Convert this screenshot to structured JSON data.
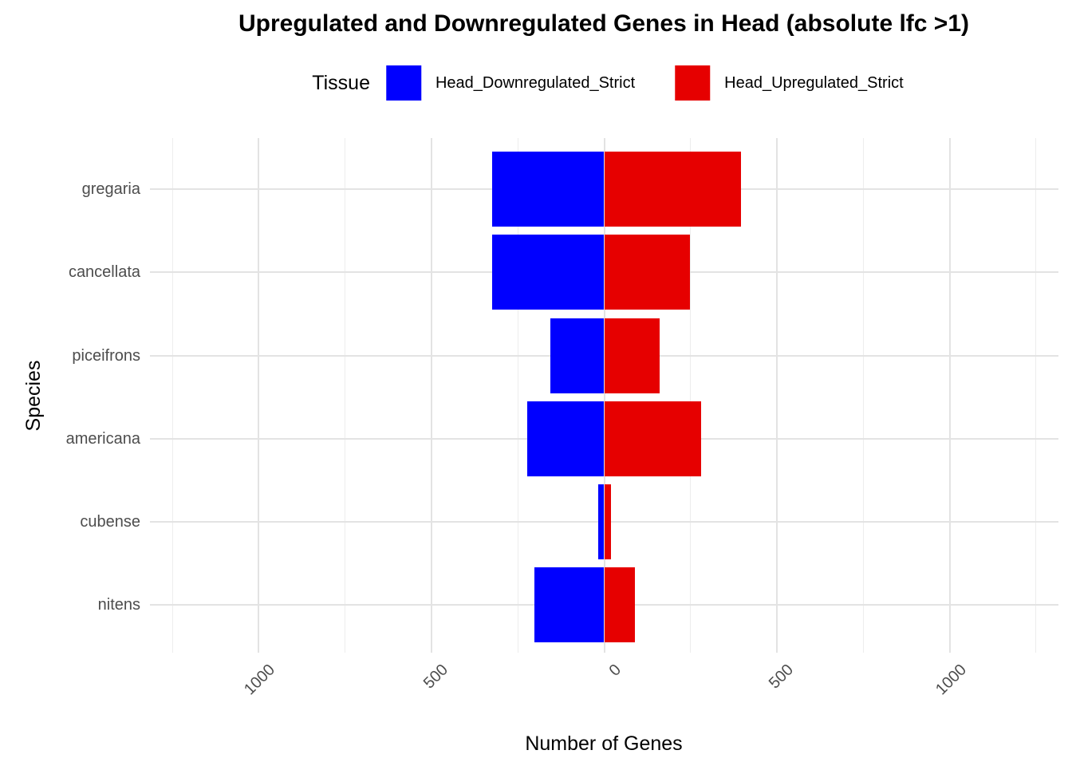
{
  "title": "Upregulated and Downregulated Genes in Head (absolute lfc >1)",
  "legend": {
    "title": "Tissue",
    "items": [
      {
        "label": "Head_Downregulated_Strict",
        "color": "#0000ff"
      },
      {
        "label": "Head_Upregulated_Strict",
        "color": "#e60000"
      }
    ]
  },
  "axes": {
    "x": {
      "title": "Number of Genes",
      "tick_values": [
        -1000,
        -500,
        0,
        500,
        1000
      ],
      "tick_labels": [
        "1000",
        "500",
        "0",
        "500",
        "1000"
      ]
    },
    "y": {
      "title": "Species"
    }
  },
  "chart_data": {
    "type": "bar",
    "orientation": "horizontal-diverging",
    "title": "Upregulated and Downregulated Genes in Head (absolute lfc >1)",
    "xlabel": "Number of Genes",
    "ylabel": "Species",
    "categories": [
      "gregaria",
      "cancellata",
      "piceifrons",
      "americana",
      "cubense",
      "nitens"
    ],
    "series": [
      {
        "name": "Head_Downregulated_Strict",
        "color": "#0000ff",
        "values": [
          -325,
          -325,
          -157,
          -222,
          -18,
          -203
        ]
      },
      {
        "name": "Head_Upregulated_Strict",
        "color": "#e60000",
        "values": [
          395,
          248,
          160,
          281,
          20,
          88
        ]
      }
    ],
    "xlim": [
      -1250,
      1250
    ],
    "grid": true,
    "legend_position": "top",
    "bar_width": 0.9
  }
}
